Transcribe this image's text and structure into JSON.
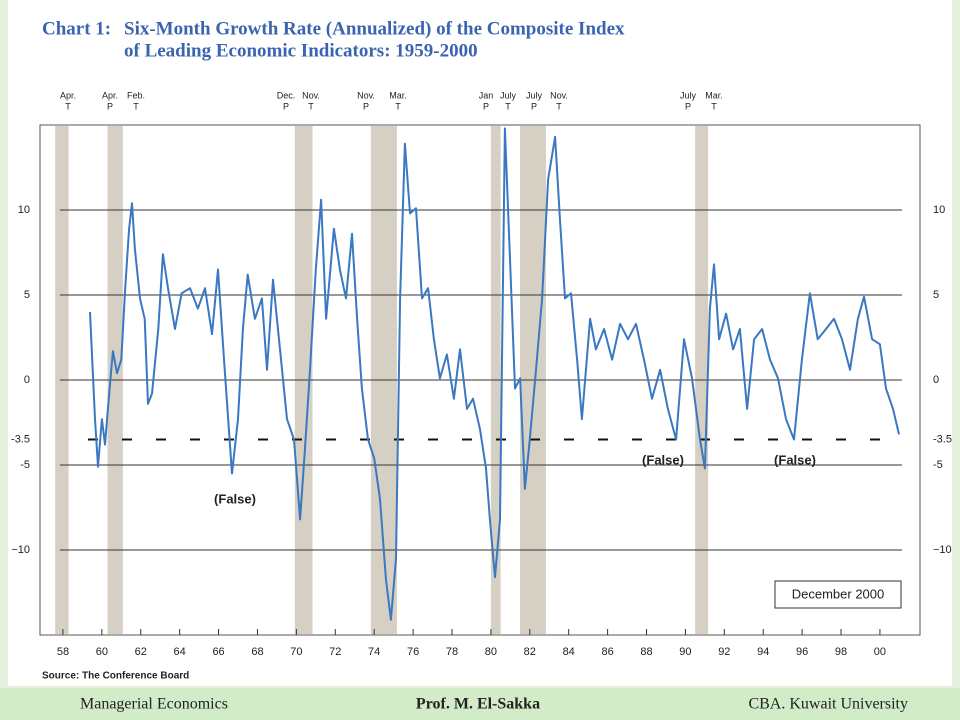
{
  "chart_data": {
    "type": "line",
    "title_prefix": "Chart 1:",
    "title": "Six-Month Growth Rate (Annualized) of the Composite Index",
    "title_line2": "of Leading Economic Indicators: 1959-2000",
    "source": "Source: The Conference Board",
    "note": "December 2000",
    "annotations": [
      "(False)",
      "(False)",
      "(False)"
    ],
    "xlim": [
      1956.82,
      2002.06
    ],
    "ylim": [
      -15,
      15
    ],
    "xticks": [
      {
        "value": 1958,
        "label": "58"
      },
      {
        "value": 1960,
        "label": "60"
      },
      {
        "value": 1962,
        "label": "62"
      },
      {
        "value": 1964,
        "label": "64"
      },
      {
        "value": 1966,
        "label": "66"
      },
      {
        "value": 1968,
        "label": "68"
      },
      {
        "value": 1970,
        "label": "70"
      },
      {
        "value": 1972,
        "label": "72"
      },
      {
        "value": 1974,
        "label": "74"
      },
      {
        "value": 1976,
        "label": "76"
      },
      {
        "value": 1978,
        "label": "78"
      },
      {
        "value": 1980,
        "label": "80"
      },
      {
        "value": 1982,
        "label": "82"
      },
      {
        "value": 1984,
        "label": "84"
      },
      {
        "value": 1986,
        "label": "86"
      },
      {
        "value": 1988,
        "label": "88"
      },
      {
        "value": 1990,
        "label": "90"
      },
      {
        "value": 1992,
        "label": "92"
      },
      {
        "value": 1994,
        "label": "94"
      },
      {
        "value": 1996,
        "label": "96"
      },
      {
        "value": 1998,
        "label": "98"
      },
      {
        "value": 2000,
        "label": "00"
      }
    ],
    "yticks": [
      10,
      5,
      0,
      -3.5,
      -5,
      {
        "value": -10,
        "label": "−10"
      }
    ],
    "grid": true,
    "threshold": -3.5,
    "recession_color": "#d6d0c4",
    "recessions": [
      [
        1957.6,
        1958.29
      ],
      [
        1960.29,
        1961.08
      ],
      [
        1969.92,
        1970.83
      ],
      [
        1973.83,
        1975.17
      ],
      [
        1980.0,
        1980.5
      ],
      [
        1981.5,
        1982.83
      ],
      [
        1990.5,
        1991.17
      ]
    ],
    "turning_points": [
      {
        "month": "Apr.",
        "type": "T"
      },
      {
        "month": "Apr.",
        "type": "P"
      },
      {
        "month": "Feb.",
        "type": "T"
      },
      {
        "month": "Dec.",
        "type": "P"
      },
      {
        "month": "Nov.",
        "type": "T"
      },
      {
        "month": "Nov.",
        "type": "P"
      },
      {
        "month": "Mar.",
        "type": "T"
      },
      {
        "month": "Jan",
        "type": "P"
      },
      {
        "month": "July",
        "type": "T"
      },
      {
        "month": "July",
        "type": "P"
      },
      {
        "month": "Nov.",
        "type": "T"
      },
      {
        "month": "July",
        "type": "P"
      },
      {
        "month": "Mar.",
        "type": "T"
      }
    ],
    "x": [
      1959.39,
      1959.65,
      1959.8,
      1960.0,
      1960.16,
      1960.4,
      1960.57,
      1960.78,
      1961.0,
      1961.2,
      1961.4,
      1961.55,
      1961.7,
      1961.96,
      1962.2,
      1962.37,
      1962.58,
      1962.9,
      1963.14,
      1963.4,
      1963.76,
      1964.1,
      1964.53,
      1964.94,
      1965.3,
      1965.66,
      1965.97,
      1966.28,
      1966.69,
      1967.0,
      1967.25,
      1967.5,
      1967.87,
      1968.23,
      1968.49,
      1968.8,
      1969.16,
      1969.52,
      1969.88,
      1970.19,
      1970.44,
      1970.7,
      1971.0,
      1971.27,
      1971.53,
      1971.93,
      1972.24,
      1972.55,
      1972.86,
      1973.12,
      1973.37,
      1973.68,
      1974.0,
      1974.3,
      1974.6,
      1974.86,
      1975.12,
      1975.33,
      1975.58,
      1975.84,
      1976.15,
      1976.46,
      1976.77,
      1977.07,
      1977.38,
      1977.74,
      1978.1,
      1978.41,
      1978.77,
      1979.08,
      1979.44,
      1979.75,
      1979.95,
      1980.21,
      1980.47,
      1980.72,
      1980.98,
      1981.24,
      1981.5,
      1981.75,
      1982.0,
      1982.32,
      1982.63,
      1982.94,
      1983.3,
      1983.55,
      1983.81,
      1984.12,
      1984.43,
      1984.68,
      1985.1,
      1985.4,
      1985.82,
      1986.23,
      1986.64,
      1987.05,
      1987.46,
      1987.87,
      1988.28,
      1988.7,
      1989.1,
      1989.52,
      1989.93,
      1990.34,
      1990.75,
      1991.0,
      1991.26,
      1991.47,
      1991.73,
      1992.09,
      1992.45,
      1992.8,
      1993.17,
      1993.53,
      1993.94,
      1994.35,
      1994.76,
      1995.17,
      1995.58,
      1995.99,
      1996.4,
      1996.8,
      1997.23,
      1997.64,
      1998.05,
      1998.46,
      1998.87,
      1999.18,
      1999.6,
      2000.0,
      2000.31,
      2000.67,
      2000.98
    ],
    "series": [
      {
        "name": "Six-Month Growth Rate",
        "color": "#3a78c2",
        "values": [
          4.0,
          -2.3,
          -5.1,
          -2.3,
          -3.8,
          -0.5,
          1.7,
          0.4,
          1.2,
          5.4,
          8.9,
          10.4,
          7.7,
          4.8,
          3.6,
          -1.4,
          -0.8,
          3.0,
          7.4,
          5.4,
          3.0,
          5.1,
          5.4,
          4.2,
          5.4,
          2.7,
          6.5,
          1.2,
          -5.5,
          -2.3,
          3.0,
          6.2,
          3.6,
          4.8,
          0.6,
          5.9,
          1.8,
          -2.3,
          -3.5,
          -8.2,
          -4.1,
          0.6,
          6.5,
          10.6,
          3.6,
          8.9,
          6.5,
          4.8,
          8.6,
          3.6,
          -0.5,
          -3.5,
          -4.6,
          -7.0,
          -11.7,
          -14.1,
          -10.5,
          4.8,
          13.9,
          9.8,
          10.1,
          4.8,
          5.4,
          2.4,
          0.1,
          1.5,
          -1.1,
          1.8,
          -1.7,
          -1.1,
          -2.9,
          -5.2,
          -8.2,
          -11.6,
          -8.2,
          14.8,
          7.1,
          -0.5,
          0.1,
          -6.4,
          -3.5,
          0.6,
          4.8,
          11.8,
          14.3,
          9.5,
          4.8,
          5.1,
          1.2,
          -2.3,
          3.6,
          1.8,
          3.0,
          1.2,
          3.3,
          2.4,
          3.3,
          1.2,
          -1.1,
          0.6,
          -1.7,
          -3.5,
          2.4,
          0.1,
          -3.5,
          -5.2,
          4.2,
          6.8,
          2.4,
          3.9,
          1.8,
          3.0,
          -1.7,
          2.4,
          3.0,
          1.2,
          0.1,
          -2.3,
          -3.5,
          1.2,
          5.1,
          2.4,
          3.0,
          3.6,
          2.4,
          0.6,
          3.6,
          4.9,
          2.4,
          2.1,
          -0.5,
          -1.7,
          -3.2
        ]
      }
    ]
  },
  "footer": {
    "left": "Managerial Economics",
    "center": "Prof. M. El-Sakka",
    "right": "CBA. Kuwait University"
  }
}
